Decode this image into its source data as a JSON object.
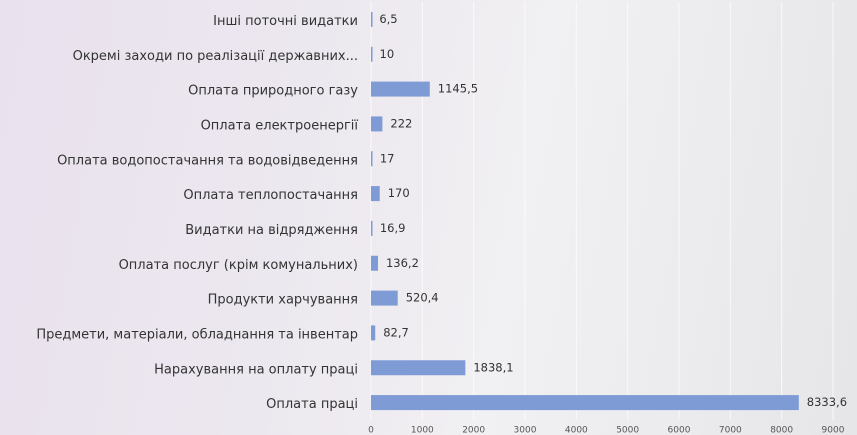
{
  "chart_data": {
    "type": "barh",
    "categories": [
      "Інші поточні видатки",
      "Окремі заходи по реалізації державних...",
      "Оплата природного газу",
      "Оплата електроенергії",
      "Оплата водопостачання та водовідведення",
      "Оплата теплопостачання",
      "Видатки на відрядження",
      "Оплата послуг (крім комунальних)",
      "Продукти харчування",
      "Предмети, матеріали, обладнання та інвентар",
      "Нарахування на оплату праці",
      "Оплата праці"
    ],
    "values": [
      6.5,
      10,
      1145.5,
      222,
      17,
      170,
      16.9,
      136.2,
      520.4,
      82.7,
      1838.1,
      8333.6
    ],
    "value_labels": [
      "6,5",
      "10",
      "1145,5",
      "222",
      "17",
      "170",
      "16,9",
      "136,2",
      "520,4",
      "82,7",
      "1838,1",
      "8333,6"
    ],
    "color": "#7f9bd6",
    "xlim": [
      0,
      9000
    ],
    "xticks": [
      0,
      1000,
      2000,
      3000,
      4000,
      5000,
      6000,
      7000,
      8000,
      9000
    ],
    "grid": true
  }
}
